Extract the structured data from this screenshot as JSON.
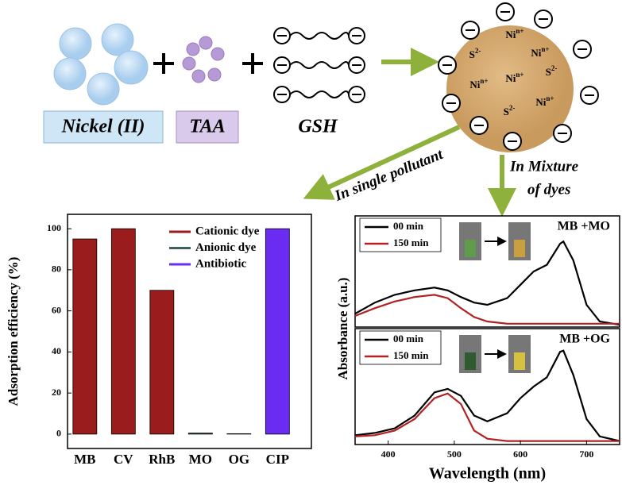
{
  "diagram": {
    "reagents": [
      "Nickel (II)",
      "TAA",
      "GSH"
    ],
    "particle_labels": [
      {
        "base": "Ni",
        "sup": "n+"
      },
      {
        "base": "S",
        "sup": "2-"
      },
      {
        "base": "Ni",
        "sup": "n+"
      },
      {
        "base": "Ni",
        "sup": "n+"
      },
      {
        "base": "Ni",
        "sup": "n+"
      },
      {
        "base": "S",
        "sup": "2-"
      },
      {
        "base": "Ni",
        "sup": "n+"
      },
      {
        "base": "S",
        "sup": "2-"
      }
    ],
    "single_pollutant": "In single pollutant",
    "mixture": [
      "In Mixture",
      "of dyes"
    ]
  },
  "chart_data": [
    {
      "type": "bar",
      "ylabel": "Adsorption efficiency (%)",
      "categories": [
        "MB",
        "CV",
        "RhB",
        "MO",
        "OG",
        "CIP"
      ],
      "values": [
        95,
        100,
        70,
        0.5,
        0.2,
        100
      ],
      "colors": [
        "#9b1c1c",
        "#9b1c1c",
        "#9b1c1c",
        "#3f5f5c",
        "#3f5f5c",
        "#6a2cf0"
      ],
      "legend": [
        {
          "name": "Cationic dye",
          "color": "#9b1c1c"
        },
        {
          "name": "Anionic dye",
          "color": "#3f5f5c"
        },
        {
          "name": "Antibiotic",
          "color": "#6a2cf0"
        }
      ],
      "ylim": [
        -7,
        107
      ],
      "yticks": [
        0,
        20,
        40,
        60,
        80,
        100
      ]
    },
    {
      "type": "line",
      "label": "MB +MO",
      "ylabel": "Absorbance (a.u.)",
      "x": [
        350,
        380,
        410,
        440,
        470,
        490,
        510,
        530,
        550,
        580,
        600,
        620,
        640,
        660,
        665,
        680,
        700,
        720,
        750
      ],
      "series": [
        {
          "name": "00 min",
          "color": "#000000",
          "values": [
            0.12,
            0.22,
            0.29,
            0.33,
            0.355,
            0.33,
            0.27,
            0.22,
            0.2,
            0.26,
            0.38,
            0.5,
            0.56,
            0.75,
            0.77,
            0.6,
            0.2,
            0.05,
            0.02
          ]
        },
        {
          "name": "150 min",
          "color": "#b22222",
          "values": [
            0.1,
            0.17,
            0.23,
            0.27,
            0.29,
            0.26,
            0.17,
            0.09,
            0.05,
            0.03,
            0.03,
            0.03,
            0.03,
            0.03,
            0.03,
            0.03,
            0.03,
            0.03,
            0.03
          ]
        }
      ],
      "xlim": [
        350,
        750
      ],
      "ylim": [
        0,
        1
      ]
    },
    {
      "type": "line",
      "label": "MB +OG",
      "xlabel": "Wavelength (nm)",
      "x": [
        350,
        380,
        410,
        440,
        470,
        490,
        510,
        530,
        550,
        580,
        600,
        620,
        640,
        660,
        665,
        680,
        700,
        720,
        750
      ],
      "series": [
        {
          "name": "00 min",
          "color": "#000000",
          "values": [
            0.08,
            0.1,
            0.14,
            0.25,
            0.45,
            0.48,
            0.42,
            0.25,
            0.2,
            0.27,
            0.4,
            0.5,
            0.58,
            0.8,
            0.81,
            0.6,
            0.22,
            0.07,
            0.03
          ]
        },
        {
          "name": "150 min",
          "color": "#b22222",
          "values": [
            0.07,
            0.08,
            0.12,
            0.22,
            0.4,
            0.44,
            0.35,
            0.12,
            0.05,
            0.03,
            0.03,
            0.03,
            0.03,
            0.03,
            0.03,
            0.03,
            0.03,
            0.03,
            0.03
          ]
        }
      ],
      "xlim": [
        350,
        750
      ],
      "ylim": [
        0,
        1
      ],
      "xticks": [
        400,
        500,
        600,
        700
      ]
    }
  ]
}
